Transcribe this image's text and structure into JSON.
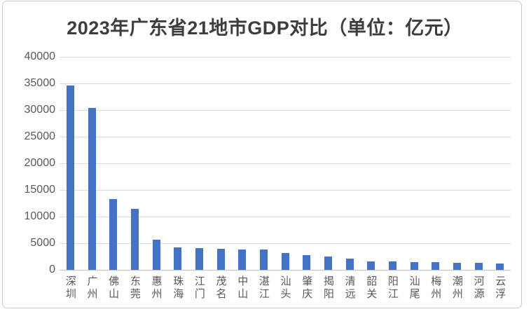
{
  "title": "2023年广东省21地市GDP对比（单位：亿元）",
  "colors": {
    "bar": "#4472c4",
    "gridline": "#dcdcdc",
    "axis_line": "#c0c0c0",
    "tick_label": "#595959",
    "title": "#3d3d3d",
    "card_border": "#cbcbcb",
    "background": "#ffffff"
  },
  "chart_data": {
    "type": "bar",
    "title": "2023年广东省21地市GDP对比（单位：亿元）",
    "categories": [
      "深圳",
      "广州",
      "佛山",
      "东莞",
      "惠州",
      "珠海",
      "江门",
      "茂名",
      "中山",
      "湛江",
      "汕头",
      "肇庆",
      "揭阳",
      "清远",
      "韶关",
      "阳江",
      "汕尾",
      "梅州",
      "潮州",
      "河源",
      "云浮"
    ],
    "values": [
      34606,
      30356,
      13276,
      11438,
      5640,
      4233,
      4022,
      3987,
      3851,
      3794,
      3158,
      2793,
      2445,
      2121,
      1620,
      1521,
      1431,
      1408,
      1358,
      1349,
      1202
    ],
    "xlabel": "",
    "ylabel": "",
    "ylim": [
      0,
      40000
    ],
    "ytick_step": 5000,
    "yticks": [
      0,
      5000,
      10000,
      15000,
      20000,
      25000,
      30000,
      35000,
      40000
    ],
    "grid": "horizontal",
    "legend_position": "none"
  }
}
